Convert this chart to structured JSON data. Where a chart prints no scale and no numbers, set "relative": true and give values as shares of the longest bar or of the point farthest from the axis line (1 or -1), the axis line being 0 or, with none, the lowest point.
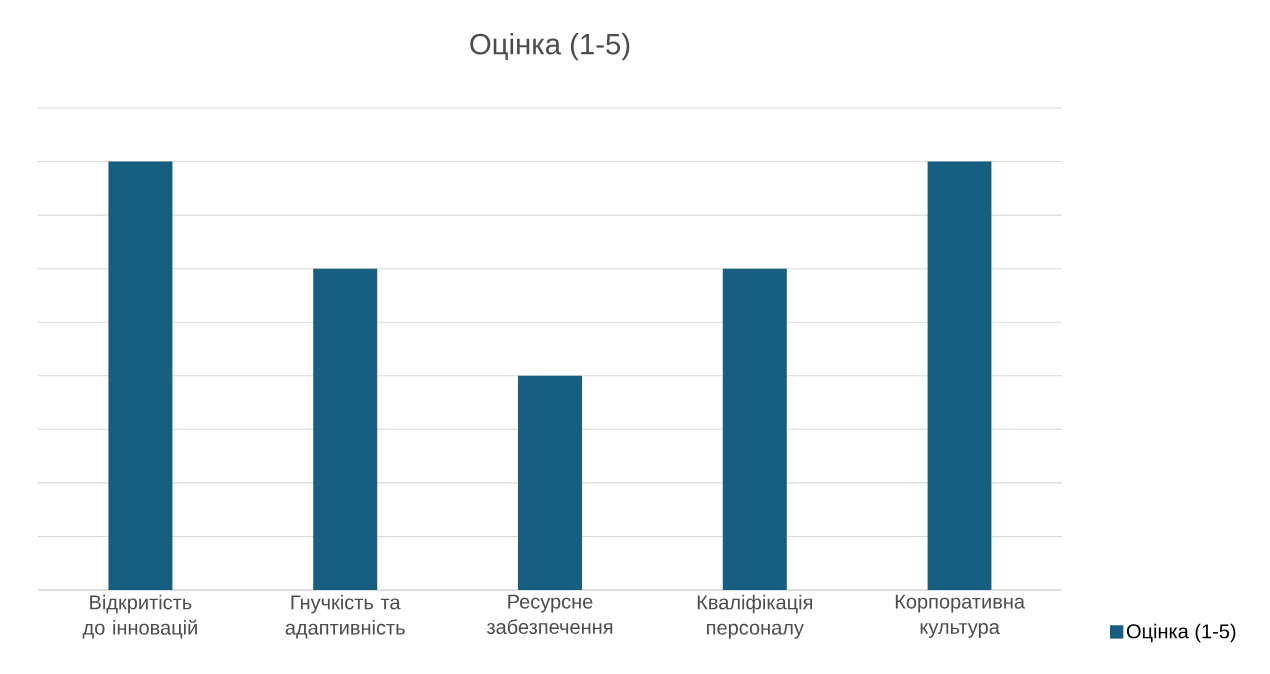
{
  "chart_data": {
    "type": "bar",
    "title": "Оцінка (1-5)",
    "relative": true,
    "grid": "y",
    "legend": "right",
    "categories": [
      "Відкритість до інновацій",
      "Гнучкість та адаптивність",
      "Ресурсне забезпечення",
      "Кваліфікація персоналу",
      "Корпоративна культура"
    ],
    "series": [
      {
        "name": "Оцінка (1-5)",
        "color": "#175f80",
        "values": [
          1,
          0.75,
          0.5,
          0.75,
          1
        ]
      }
    ]
  }
}
